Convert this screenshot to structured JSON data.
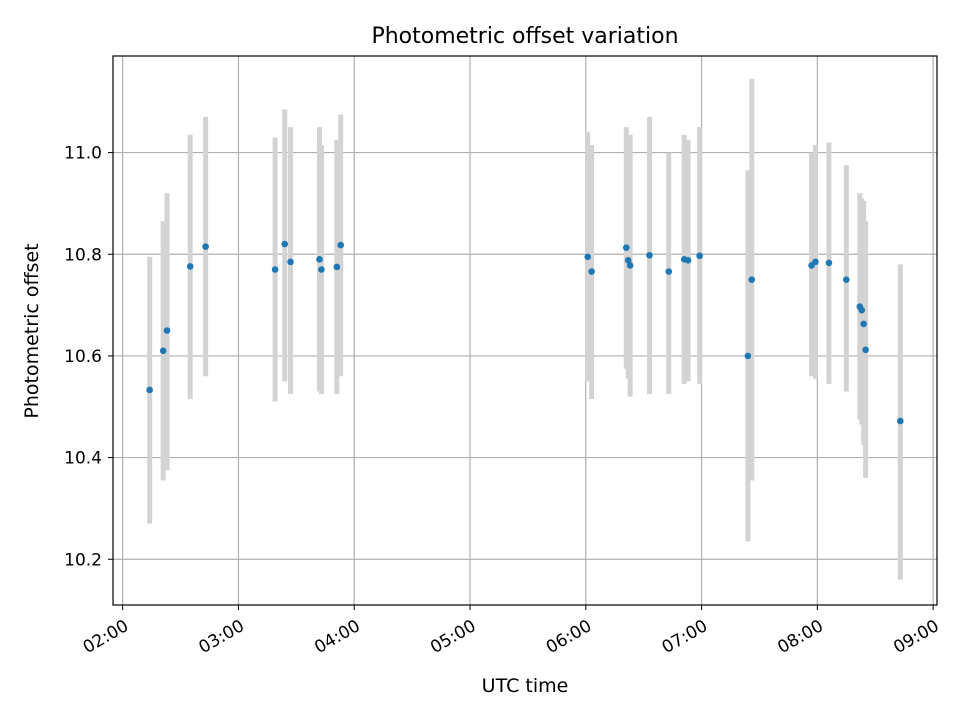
{
  "chart_data": {
    "type": "scatter",
    "title": "Photometric offset variation",
    "xlabel": "UTC time",
    "ylabel": "Photometric offset",
    "xlim": [
      "01:55",
      "09:02"
    ],
    "ylim": [
      10.11,
      11.19
    ],
    "x_ticks": [
      "02:00",
      "03:00",
      "04:00",
      "05:00",
      "06:00",
      "07:00",
      "08:00",
      "09:00"
    ],
    "y_ticks": [
      "10.2",
      "10.4",
      "10.6",
      "10.8",
      "11.0"
    ],
    "grid": true,
    "legend": "none",
    "colors": {
      "points": "#1f77b4",
      "error_bars": "#d3d3d3",
      "grid": "#b0b0b0"
    },
    "series": [
      {
        "x": [
          "02:14",
          "02:21",
          "02:23",
          "02:35",
          "02:43",
          "03:19",
          "03:24",
          "03:27",
          "03:42",
          "03:43",
          "03:51",
          "03:53",
          "06:01",
          "06:03",
          "06:21",
          "06:22",
          "06:23",
          "06:33",
          "06:43",
          "06:51",
          "06:53",
          "06:59",
          "07:24",
          "07:26",
          "07:57",
          "07:59",
          "08:06",
          "08:15",
          "08:22",
          "08:23",
          "08:24",
          "08:25",
          "08:43"
        ],
        "y": [
          10.533,
          10.61,
          10.65,
          10.776,
          10.815,
          10.77,
          10.82,
          10.785,
          10.79,
          10.77,
          10.775,
          10.818,
          10.795,
          10.766,
          10.813,
          10.788,
          10.778,
          10.798,
          10.766,
          10.79,
          10.788,
          10.797,
          10.6,
          10.75,
          10.778,
          10.785,
          10.783,
          10.75,
          10.697,
          10.69,
          10.663,
          10.612,
          10.472
        ],
        "y_low": [
          10.27,
          10.355,
          10.375,
          10.515,
          10.56,
          10.51,
          10.55,
          10.525,
          10.53,
          10.525,
          10.525,
          10.56,
          10.55,
          10.515,
          10.575,
          10.555,
          10.52,
          10.525,
          10.525,
          10.545,
          10.55,
          10.545,
          10.235,
          10.355,
          10.56,
          10.555,
          10.545,
          10.53,
          10.475,
          10.465,
          10.425,
          10.36,
          10.16
        ],
        "y_high": [
          10.795,
          10.865,
          10.92,
          11.035,
          11.07,
          11.03,
          11.085,
          11.05,
          11.05,
          11.015,
          11.025,
          11.075,
          11.04,
          11.015,
          11.05,
          11.02,
          11.035,
          11.07,
          11.0,
          11.035,
          11.025,
          11.05,
          10.965,
          11.145,
          11.0,
          11.015,
          11.02,
          10.975,
          10.92,
          10.91,
          10.905,
          10.865,
          10.78
        ]
      }
    ]
  }
}
